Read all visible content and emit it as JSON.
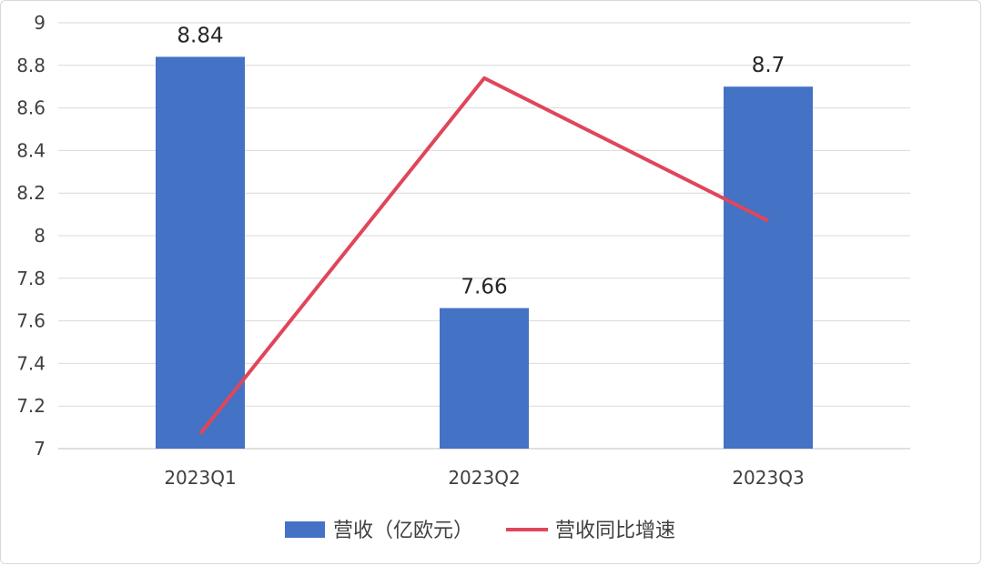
{
  "chart_data": {
    "type": "bar",
    "categories": [
      "2023Q1",
      "2023Q2",
      "2023Q3"
    ],
    "series": [
      {
        "name": "营收（亿欧元）",
        "type": "bar",
        "values": [
          8.84,
          7.66,
          8.7
        ],
        "data_labels": [
          "8.84",
          "7.66",
          "8.7"
        ],
        "color": "#4472c4"
      },
      {
        "name": "营收同比增速",
        "type": "line",
        "values": [
          7.07,
          8.74,
          8.07
        ],
        "color": "#e0465a"
      }
    ],
    "y_ticks": [
      "7",
      "7.2",
      "7.4",
      "7.6",
      "7.8",
      "8",
      "8.2",
      "8.4",
      "8.6",
      "8.8",
      "9"
    ],
    "ylim": [
      7,
      9
    ],
    "grid": true,
    "legend_position": "bottom"
  }
}
